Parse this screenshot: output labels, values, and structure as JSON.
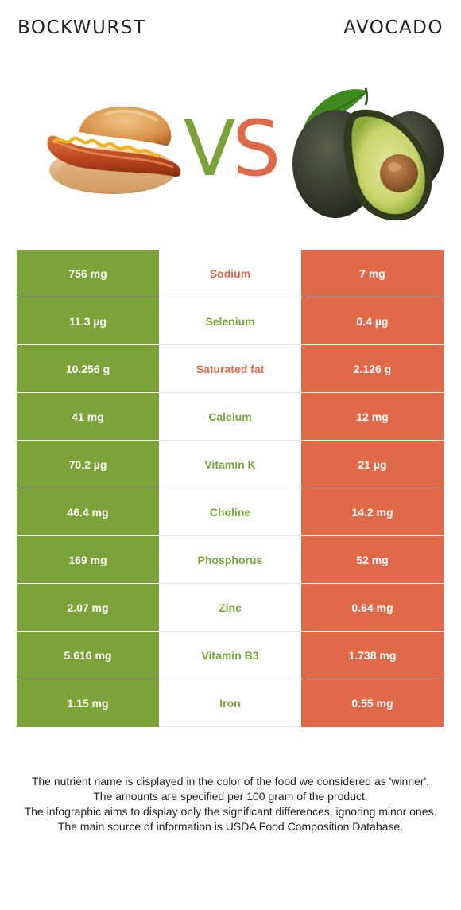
{
  "header": {
    "left_food": "BOCKWURST",
    "right_food": "AVOCADO",
    "vs_v": "V",
    "vs_s": "S"
  },
  "colors": {
    "left_food": "#7ba33a",
    "right_food": "#e0694a"
  },
  "rows": [
    {
      "name": "Sodium",
      "left": "756 mg",
      "right": "7 mg",
      "winner": "right"
    },
    {
      "name": "Selenium",
      "left": "11.3 µg",
      "right": "0.4 µg",
      "winner": "left"
    },
    {
      "name": "Saturated fat",
      "left": "10.256 g",
      "right": "2.126 g",
      "winner": "right"
    },
    {
      "name": "Calcium",
      "left": "41 mg",
      "right": "12 mg",
      "winner": "left"
    },
    {
      "name": "Vitamin K",
      "left": "70.2 µg",
      "right": "21 µg",
      "winner": "left"
    },
    {
      "name": "Choline",
      "left": "46.4 mg",
      "right": "14.2 mg",
      "winner": "left"
    },
    {
      "name": "Phosphorus",
      "left": "169 mg",
      "right": "52 mg",
      "winner": "left"
    },
    {
      "name": "Zinc",
      "left": "2.07 mg",
      "right": "0.64 mg",
      "winner": "left"
    },
    {
      "name": "Vitamin B3",
      "left": "5.616 mg",
      "right": "1.738 mg",
      "winner": "left"
    },
    {
      "name": "Iron",
      "left": "1.15 mg",
      "right": "0.55 mg",
      "winner": "left"
    }
  ],
  "notes": [
    "The nutrient name is displayed in the color of the food we considered as 'winner'.",
    "The amounts are specified per 100 gram of the product.",
    "The infographic aims to display only the significant differences, ignoring minor ones.",
    "The main source of information is USDA Food Composition Database."
  ]
}
